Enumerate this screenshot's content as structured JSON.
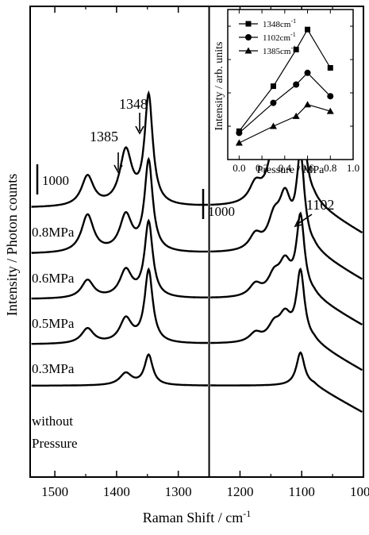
{
  "chart_data": [
    {
      "type": "line",
      "xlabel": "Raman Shift / cm",
      "xlabel_sup": "-1",
      "ylabel": "Intensity / Photon counts",
      "xlim": [
        1540,
        1000
      ],
      "xticks": [
        1500,
        1400,
        1300,
        1200,
        1100,
        1000
      ],
      "yticks_shown": false,
      "scale_bar_label": "1000",
      "scale_bars": [
        {
          "region": "left",
          "label": "1000"
        },
        {
          "region": "right",
          "label": "1000"
        }
      ],
      "annotations": [
        {
          "text": "1348",
          "x": 1348
        },
        {
          "text": "1385",
          "x": 1385
        },
        {
          "text": "1102",
          "x": 1102
        }
      ],
      "series": [
        {
          "name": "0.8MPa",
          "peaks": [
            [
              1447,
              1.0
            ],
            [
              1385,
              1.8
            ],
            [
              1348,
              3.6
            ],
            [
              1175,
              0.6
            ],
            [
              1145,
              1.4
            ],
            [
              1127,
              2.3
            ],
            [
              1102,
              3.5
            ]
          ]
        },
        {
          "name": "0.6MPa",
          "peaks": [
            [
              1447,
              1.25
            ],
            [
              1385,
              1.2
            ],
            [
              1348,
              3.0
            ],
            [
              1175,
              0.5
            ],
            [
              1145,
              0.9
            ],
            [
              1127,
              1.6
            ],
            [
              1102,
              3.0
            ]
          ]
        },
        {
          "name": "0.5MPa",
          "peaks": [
            [
              1447,
              0.6
            ],
            [
              1385,
              0.9
            ],
            [
              1348,
              2.5
            ],
            [
              1175,
              0.4
            ],
            [
              1145,
              0.6
            ],
            [
              1127,
              1.0
            ],
            [
              1102,
              2.6
            ]
          ]
        },
        {
          "name": "0.3MPa",
          "peaks": [
            [
              1447,
              0.5
            ],
            [
              1385,
              0.8
            ],
            [
              1348,
              2.4
            ],
            [
              1175,
              0.3
            ],
            [
              1145,
              0.5
            ],
            [
              1127,
              0.8
            ],
            [
              1102,
              2.3
            ]
          ]
        },
        {
          "name": "without Pressure",
          "label_lines": [
            "without",
            "Pressure"
          ],
          "peaks": [
            [
              1385,
              0.4
            ],
            [
              1348,
              1.0
            ],
            [
              1102,
              1.1
            ]
          ]
        }
      ]
    },
    {
      "type": "line",
      "inset": true,
      "xlabel": "Pressure / MPa",
      "ylabel": "Intensity / arb. units",
      "xlim": [
        -0.1,
        1.0
      ],
      "ylim": [
        0,
        4.5
      ],
      "xticks": [
        "0.0",
        "0.2",
        "0.4",
        "0.6",
        "0.8",
        "1.0"
      ],
      "yticks_shown": false,
      "legend_position": "top-left",
      "series": [
        {
          "name": "1348cm",
          "name_sup": "-1",
          "marker": "square",
          "x": [
            0.0,
            0.3,
            0.5,
            0.6,
            0.8
          ],
          "y": [
            0.85,
            2.2,
            3.3,
            3.9,
            2.75
          ]
        },
        {
          "name": "1102cm",
          "name_sup": "-1",
          "marker": "circle",
          "x": [
            0.0,
            0.3,
            0.5,
            0.6,
            0.8
          ],
          "y": [
            0.8,
            1.7,
            2.25,
            2.6,
            1.9
          ]
        },
        {
          "name": "1385cm",
          "name_sup": "-1",
          "marker": "triangle",
          "x": [
            0.0,
            0.3,
            0.5,
            0.6,
            0.8
          ],
          "y": [
            0.5,
            1.0,
            1.3,
            1.65,
            1.45
          ]
        }
      ]
    }
  ]
}
